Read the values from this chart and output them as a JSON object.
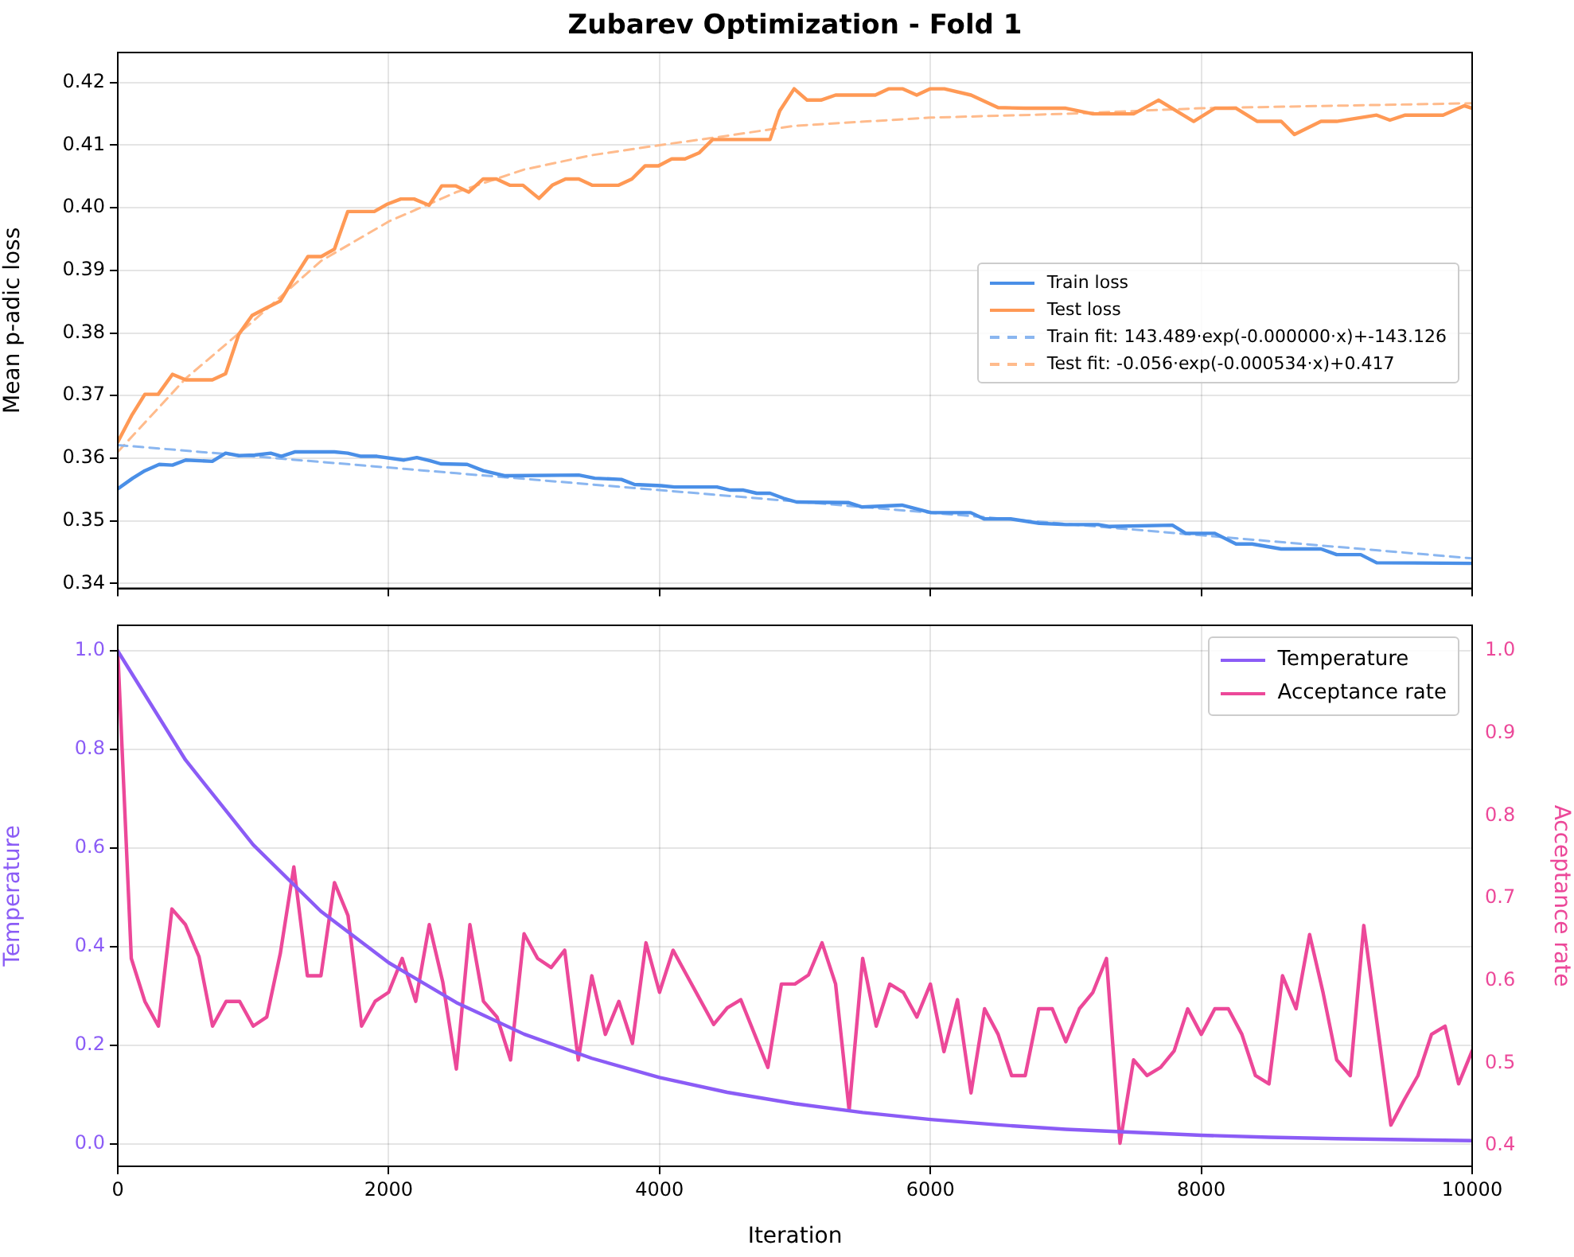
{
  "chart_data": [
    {
      "type": "line",
      "title": "Zubarev Optimization - Fold 1",
      "ylabel": "Mean p-adic loss",
      "xlim": [
        0,
        10000
      ],
      "xticks": [
        0,
        2000,
        4000,
        6000,
        8000,
        10000
      ],
      "ylim": [
        0.3392,
        0.4248
      ],
      "yticks": [
        0.34,
        0.35,
        0.36,
        0.37,
        0.38,
        0.39,
        {
          "value": 0.4,
          "label": "0.40"
        },
        0.41,
        0.42
      ],
      "tick_labels": "y",
      "grid": true,
      "legend": "right",
      "series": [
        {
          "name": "Train loss",
          "color": "#4a8fe7",
          "x": [
            0,
            110,
            200,
            306,
            404,
            502,
            698,
            796,
            894,
            1012,
            1129,
            1208,
            1306,
            1600,
            1698,
            1796,
            1914,
            2110,
            2208,
            2306,
            2384,
            2580,
            2698,
            2855,
            3404,
            3522,
            3718,
            3816,
            4012,
            4110,
            4424,
            4522,
            4620,
            4718,
            4816,
            4914,
            5012,
            5397,
            5496,
            5790,
            6005,
            6298,
            6396,
            6592,
            6804,
            7003,
            7238,
            7317,
            7787,
            7885,
            8100,
            8257,
            8375,
            8590,
            8884,
            9000,
            9177,
            9295,
            10000
          ],
          "values": [
            0.3551,
            0.3568,
            0.358,
            0.359,
            0.3589,
            0.3597,
            0.3595,
            0.3608,
            0.3604,
            0.3605,
            0.3608,
            0.3603,
            0.361,
            0.361,
            0.3608,
            0.3603,
            0.3603,
            0.3597,
            0.3601,
            0.3596,
            0.3591,
            0.359,
            0.358,
            0.3572,
            0.3573,
            0.3568,
            0.3566,
            0.3558,
            0.3556,
            0.3554,
            0.3554,
            0.3549,
            0.3549,
            0.3544,
            0.3544,
            0.3536,
            0.353,
            0.3529,
            0.3522,
            0.3525,
            0.3513,
            0.3513,
            0.3503,
            0.3503,
            0.3496,
            0.3494,
            0.3494,
            0.3491,
            0.3493,
            0.348,
            0.348,
            0.3463,
            0.3463,
            0.3455,
            0.3455,
            0.3446,
            0.3446,
            0.3433,
            0.3432
          ]
        },
        {
          "name": "Test loss",
          "color": "#ff9955",
          "x": [
            0,
            102,
            200,
            298,
            404,
            502,
            698,
            796,
            894,
            992,
            1098,
            1200,
            1298,
            1404,
            1502,
            1600,
            1698,
            1894,
            1992,
            2090,
            2188,
            2298,
            2392,
            2494,
            2592,
            2698,
            2796,
            2894,
            2992,
            3110,
            3208,
            3306,
            3404,
            3502,
            3698,
            3796,
            3894,
            3992,
            4090,
            4188,
            4294,
            4392,
            4816,
            4888,
            4994,
            5090,
            5192,
            5300,
            5593,
            5691,
            5797,
            5899,
            5997,
            6103,
            6300,
            6500,
            6700,
            7000,
            7200,
            7500,
            7685,
            7944,
            8100,
            8257,
            8414,
            8590,
            8688,
            8884,
            9000,
            9295,
            9393,
            9506,
            9785,
            9941,
            10000
          ],
          "values": [
            0.3626,
            0.3668,
            0.3702,
            0.3702,
            0.3734,
            0.3725,
            0.3725,
            0.3735,
            0.3798,
            0.3828,
            0.384,
            0.3851,
            0.3886,
            0.3922,
            0.3922,
            0.3934,
            0.3994,
            0.3994,
            0.4006,
            0.4014,
            0.4014,
            0.4004,
            0.4035,
            0.4035,
            0.4025,
            0.4046,
            0.4046,
            0.4036,
            0.4036,
            0.4015,
            0.4036,
            0.4046,
            0.4046,
            0.4036,
            0.4036,
            0.4046,
            0.4067,
            0.4067,
            0.4078,
            0.4078,
            0.4088,
            0.4109,
            0.4109,
            0.4155,
            0.419,
            0.4172,
            0.4172,
            0.418,
            0.418,
            0.419,
            0.419,
            0.418,
            0.419,
            0.419,
            0.418,
            0.416,
            0.4159,
            0.4159,
            0.415,
            0.415,
            0.4172,
            0.4138,
            0.4159,
            0.4159,
            0.4138,
            0.4138,
            0.4117,
            0.4138,
            0.4138,
            0.4148,
            0.414,
            0.4148,
            0.4148,
            0.4163,
            0.4159
          ]
        },
        {
          "name": "Train fit: 143.489·exp(-0.000000·x)+-143.126",
          "color": "#8ab6f0",
          "line_style": "dashed",
          "x": [
            0,
            2500,
            5000,
            7500,
            10000
          ],
          "values": [
            0.3621,
            0.3576,
            0.3531,
            0.3486,
            0.344
          ]
        },
        {
          "name": "Test fit: -0.056·exp(-0.000534·x)+0.417",
          "color": "#ffbb8c",
          "line_style": "dashed",
          "x": [
            0,
            500,
            1000,
            1500,
            2000,
            2500,
            3000,
            3500,
            4000,
            4500,
            5000,
            6000,
            7000,
            8000,
            9000,
            10000
          ],
          "values": [
            0.361,
            0.3727,
            0.3819,
            0.3915,
            0.3978,
            0.4025,
            0.4061,
            0.4084,
            0.41,
            0.4115,
            0.4131,
            0.4144,
            0.415,
            0.4159,
            0.4163,
            0.4167
          ]
        }
      ]
    },
    {
      "type": "line",
      "xlabel": "Iteration",
      "ylabel": "Temperature",
      "y2label": "Acceptance rate",
      "xlim": [
        0,
        10000
      ],
      "xticks": [
        0,
        2000,
        4000,
        6000,
        8000,
        10000
      ],
      "ylim": [
        -0.045,
        1.052
      ],
      "yticks": [
        {
          "value": 0,
          "label": "0.0"
        },
        0.2,
        0.4,
        0.6,
        0.8,
        {
          "value": 1,
          "label": "1.0"
        }
      ],
      "y2lim": [
        0.375,
        1.031
      ],
      "y2ticks": [
        0.4,
        0.5,
        0.6,
        0.7,
        0.8,
        0.9,
        {
          "value": 1,
          "label": "1.0"
        }
      ],
      "grid": true,
      "legend": "top right",
      "series": [
        {
          "name": "Temperature",
          "color": "#8b5cf6",
          "x": [
            0,
            500,
            1000,
            1500,
            2000,
            2500,
            3000,
            3500,
            4000,
            4500,
            5000,
            5500,
            6000,
            6500,
            7000,
            7500,
            8000,
            8500,
            9000,
            9500,
            10000
          ],
          "values": [
            1.0,
            0.779,
            0.607,
            0.472,
            0.368,
            0.287,
            0.223,
            0.174,
            0.135,
            0.105,
            0.082,
            0.064,
            0.05,
            0.039,
            0.03,
            0.024,
            0.018,
            0.014,
            0.011,
            0.009,
            0.007
          ]
        },
        {
          "name": "Acceptance rate",
          "color": "#ec4899",
          "axis": "y2",
          "x": [
            0,
            100,
            200,
            300,
            400,
            500,
            600,
            700,
            800,
            900,
            1000,
            1100,
            1200,
            1300,
            1400,
            1500,
            1600,
            1700,
            1800,
            1900,
            2000,
            2100,
            2200,
            2300,
            2400,
            2500,
            2600,
            2700,
            2800,
            2900,
            3000,
            3100,
            3200,
            3300,
            3400,
            3500,
            3600,
            3700,
            3800,
            3900,
            4000,
            4100,
            4200,
            4300,
            4400,
            4500,
            4600,
            4700,
            4800,
            4900,
            5000,
            5100,
            5200,
            5300,
            5400,
            5500,
            5600,
            5700,
            5800,
            5900,
            6000,
            6100,
            6200,
            6300,
            6400,
            6500,
            6600,
            6700,
            6800,
            6900,
            7000,
            7100,
            7200,
            7300,
            7400,
            7500,
            7600,
            7700,
            7800,
            7900,
            8000,
            8100,
            8200,
            8300,
            8400,
            8500,
            8600,
            8700,
            8800,
            8900,
            9000,
            9100,
            9200,
            9300,
            9400,
            9500,
            9600,
            9700,
            9800,
            9900,
            10000
          ],
          "values": [
            1.0,
            0.627,
            0.575,
            0.545,
            0.687,
            0.668,
            0.629,
            0.545,
            0.575,
            0.575,
            0.545,
            0.556,
            0.633,
            0.738,
            0.606,
            0.606,
            0.719,
            0.679,
            0.545,
            0.575,
            0.586,
            0.627,
            0.575,
            0.668,
            0.598,
            0.493,
            0.668,
            0.575,
            0.556,
            0.504,
            0.657,
            0.627,
            0.616,
            0.637,
            0.504,
            0.606,
            0.535,
            0.575,
            0.524,
            0.646,
            0.586,
            0.637,
            0.607,
            0.577,
            0.547,
            0.567,
            0.577,
            0.536,
            0.495,
            0.596,
            0.596,
            0.607,
            0.646,
            0.596,
            0.443,
            0.627,
            0.545,
            0.596,
            0.586,
            0.556,
            0.596,
            0.514,
            0.577,
            0.464,
            0.566,
            0.535,
            0.485,
            0.485,
            0.566,
            0.566,
            0.526,
            0.566,
            0.586,
            0.627,
            0.403,
            0.504,
            0.485,
            0.495,
            0.515,
            0.566,
            0.535,
            0.566,
            0.566,
            0.535,
            0.485,
            0.475,
            0.606,
            0.566,
            0.656,
            0.585,
            0.504,
            0.485,
            0.667,
            0.546,
            0.425,
            0.456,
            0.485,
            0.535,
            0.545,
            0.475,
            0.515
          ]
        }
      ]
    }
  ]
}
